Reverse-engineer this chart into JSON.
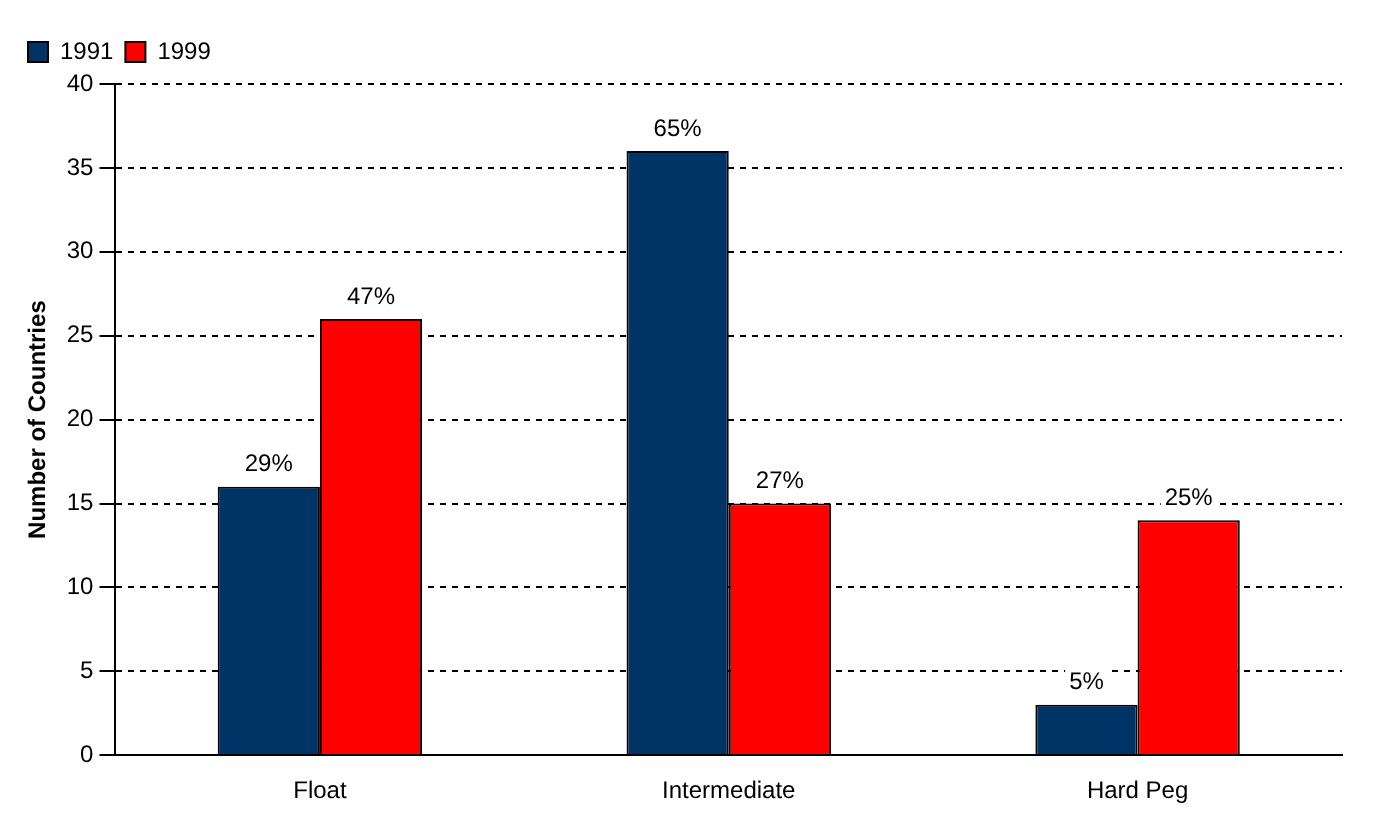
{
  "chart_data": {
    "type": "bar",
    "ylabel": "Number of Countries",
    "categories": [
      "Float",
      "Intermediate",
      "Hard Peg"
    ],
    "series": [
      {
        "name": "1991",
        "color": "#003366",
        "values": [
          16,
          36,
          3
        ]
      },
      {
        "name": "1999",
        "color": "#ff0000",
        "values": [
          26,
          15,
          14
        ]
      }
    ],
    "annotations": [
      {
        "text": "29%",
        "x": "Float",
        "y": 16
      },
      {
        "text": "47%",
        "x": "Float",
        "y": 26
      },
      {
        "text": "65%",
        "x": "Intermediate",
        "y": 36
      },
      {
        "text": "27%",
        "x": "Intermediate",
        "y": 15
      },
      {
        "text": "5%",
        "x": "Hard Peg",
        "y": 3
      },
      {
        "text": "25%",
        "x": "Hard Peg",
        "y": 14
      }
    ],
    "ylim": [
      0,
      40
    ],
    "yticks": [
      0,
      5,
      10,
      15,
      20,
      25,
      30,
      35,
      40
    ],
    "grid": "y",
    "legend": "top left"
  }
}
